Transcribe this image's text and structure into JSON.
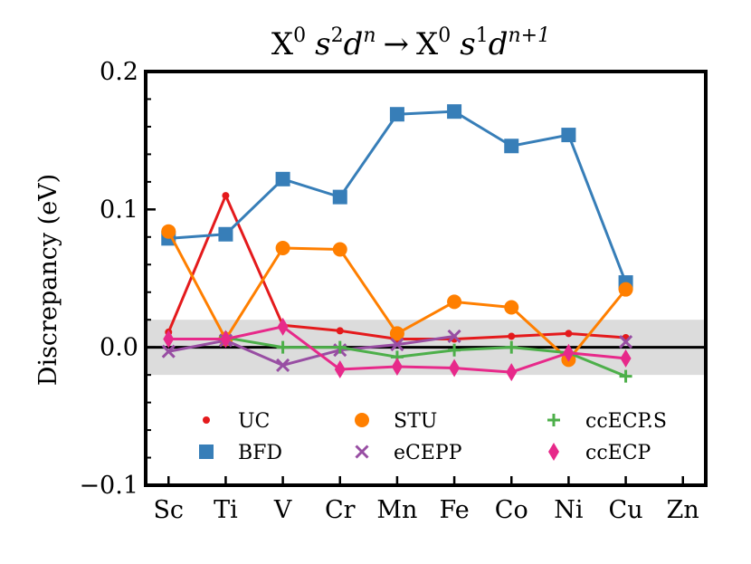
{
  "chart_data": {
    "type": "line",
    "title": {
      "text": "X0 s2dn → X0 s1dn+1",
      "parts": {
        "x": "X",
        "zero": "0",
        "s": "s",
        "two": "2",
        "d": "d",
        "n": "n",
        "arrow": "→",
        "one": "1",
        "np1": "n+1"
      }
    },
    "xlabel": "",
    "ylabel": "Discrepancy (eV)",
    "ylim": [
      -0.1,
      0.2
    ],
    "yticks": [
      {
        "value": -0.1,
        "label": "−0.1"
      },
      {
        "value": 0.0,
        "label": "0.0"
      },
      {
        "value": 0.1,
        "label": "0.1"
      },
      {
        "value": 0.2,
        "label": "0.2"
      }
    ],
    "y_minor_step": 0.02,
    "categories": [
      "Sc",
      "Ti",
      "V",
      "Cr",
      "Mn",
      "Fe",
      "Co",
      "Ni",
      "Cu",
      "Zn"
    ],
    "reference_line": 0.0,
    "band": [
      -0.02,
      0.02
    ],
    "legend_position": "lower-center",
    "series": [
      {
        "name": "UC",
        "color": "#e41a1c",
        "marker": "dot",
        "values": [
          0.011,
          0.11,
          0.016,
          0.012,
          0.006,
          0.006,
          0.008,
          0.01,
          0.007,
          null
        ]
      },
      {
        "name": "BFD",
        "color": "#377eb8",
        "marker": "square",
        "values": [
          0.079,
          0.082,
          0.122,
          0.109,
          0.169,
          0.171,
          0.146,
          0.154,
          0.047,
          null
        ]
      },
      {
        "name": "STU",
        "color": "#ff7f00",
        "marker": "circle",
        "values": [
          0.084,
          0.006,
          0.072,
          0.071,
          0.01,
          0.033,
          0.029,
          -0.009,
          0.042,
          null
        ]
      },
      {
        "name": "eCEPP",
        "color": "#984ea3",
        "marker": "x",
        "values": [
          -0.003,
          0.005,
          -0.013,
          -0.002,
          0.002,
          0.008,
          null,
          null,
          0.004,
          null
        ]
      },
      {
        "name": "ccECP.S",
        "color": "#4daf4a",
        "marker": "plus",
        "values": [
          null,
          0.007,
          0.0,
          0.0,
          -0.007,
          -0.002,
          0.0,
          -0.004,
          -0.021,
          null
        ]
      },
      {
        "name": "ccECP",
        "color": "#e7298a",
        "marker": "diamond",
        "values": [
          0.006,
          0.006,
          0.015,
          -0.016,
          -0.014,
          -0.015,
          -0.018,
          -0.004,
          -0.008,
          null
        ]
      }
    ]
  }
}
